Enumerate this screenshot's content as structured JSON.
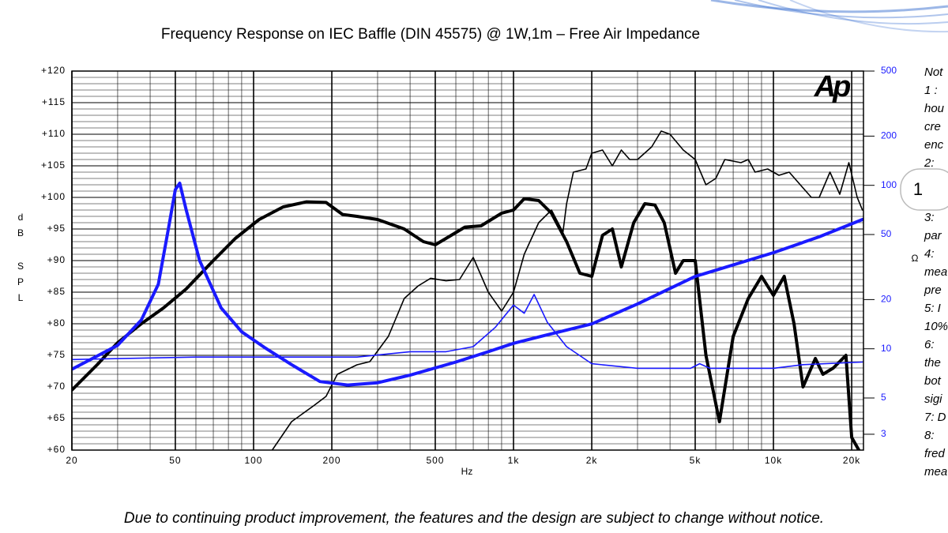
{
  "chart_data": {
    "type": "line",
    "title": "Frequency Response on IEC Baffle (DIN 45575)  @ 1W,1m – Free Air Impedance",
    "footer": "Due to continuing product improvement, the features and the design are subject to change without notice.",
    "logo": "Ap",
    "popup": "1",
    "ylabel_letters": [
      "d",
      "B",
      "S",
      "P",
      "L"
    ],
    "xlabel": "Hz",
    "y2label": "Ω",
    "notes": [
      "Not",
      "1 :",
      "hou",
      "cre",
      "enc",
      "2:",
      "3:",
      "par",
      "4:",
      "mea",
      "pre",
      "5: I",
      "10%",
      "6:",
      "the",
      "bot",
      "sigi",
      "7: D",
      "8:",
      "fred",
      "mea"
    ],
    "xlog": true,
    "y2log": true,
    "grid": true,
    "minor_grid": true,
    "xlim": [
      20,
      22200
    ],
    "xticks": [
      20,
      50,
      100,
      200,
      500,
      {
        "value": 1000,
        "label": "1k"
      },
      {
        "value": 2000,
        "label": "2k"
      },
      {
        "value": 5000,
        "label": "5k"
      },
      {
        "value": 10000,
        "label": "10k"
      },
      {
        "value": 20000,
        "label": "20k"
      }
    ],
    "ylim": [
      60,
      120
    ],
    "yticks": [
      {
        "value": 60,
        "label": "+60"
      },
      {
        "value": 65,
        "label": "+65"
      },
      {
        "value": 70,
        "label": "+70"
      },
      {
        "value": 75,
        "label": "+75"
      },
      {
        "value": 80,
        "label": "+80"
      },
      {
        "value": 85,
        "label": "+85"
      },
      {
        "value": 90,
        "label": "+90"
      },
      {
        "value": 95,
        "label": "+95"
      },
      {
        "value": 100,
        "label": "+100"
      },
      {
        "value": 105,
        "label": "+105"
      },
      {
        "value": 110,
        "label": "+110"
      },
      {
        "value": 115,
        "label": "+115"
      },
      {
        "value": 120,
        "label": "+120"
      }
    ],
    "y2lim": [
      2.4,
      500
    ],
    "y2ticks": [
      3,
      5,
      10,
      20,
      50,
      100,
      200,
      500
    ],
    "y2color": "#1a1aff",
    "series": [
      {
        "color": "#000000",
        "line_width": 4,
        "x": [
          20,
          25,
          30,
          37,
          45,
          55,
          70,
          85,
          105,
          130,
          160,
          190,
          220,
          250,
          300,
          380,
          450,
          500,
          560,
          650,
          750,
          900,
          1000,
          1100,
          1250,
          1400,
          1600,
          1800,
          2000,
          2200,
          2400,
          2600,
          2900,
          3200,
          3500,
          3800,
          4200,
          4500,
          5000,
          5500,
          6200,
          7000,
          8000,
          9000,
          10000,
          11000,
          12000,
          13000,
          14500,
          15500,
          17000,
          19000,
          20000,
          22000
        ],
        "values": [
          69.5,
          73.5,
          77,
          80,
          82.5,
          85.5,
          90,
          93.5,
          96.5,
          98.5,
          99.3,
          99.2,
          97.3,
          97,
          96.5,
          95,
          93,
          92.5,
          93.7,
          95.3,
          95.5,
          97.5,
          98,
          99.8,
          99.5,
          97.5,
          93,
          88,
          87.5,
          94,
          95,
          89,
          96,
          99,
          98.8,
          96,
          88,
          90,
          90,
          75,
          64.5,
          78,
          84,
          87.5,
          84.5,
          87.5,
          80,
          70,
          74.5,
          72,
          73,
          75,
          62,
          59
        ]
      },
      {
        "color": "#000000",
        "line_width": 1.6,
        "x": [
          118,
          140,
          170,
          190,
          210,
          250,
          280,
          330,
          380,
          430,
          480,
          550,
          620,
          700,
          800,
          900,
          1000,
          1100,
          1250,
          1400,
          1550,
          1600,
          1700,
          1900,
          2000,
          2200,
          2400,
          2600,
          2800,
          3000,
          3400,
          3700,
          4000,
          4500,
          5000,
          5500,
          6000,
          6500,
          7500,
          8000,
          8500,
          9500,
          10500,
          11500,
          13000,
          14000,
          15000,
          16500,
          18000,
          19500,
          21000,
          22000
        ],
        "values": [
          60,
          64.5,
          67,
          68.5,
          72,
          73.5,
          74,
          78,
          84,
          86,
          87.2,
          86.8,
          87,
          90.5,
          85,
          82,
          85,
          91,
          96,
          98,
          94.5,
          99,
          104,
          104.5,
          107,
          107.5,
          105,
          107.5,
          106,
          106,
          108,
          110.5,
          110,
          107.5,
          106,
          102,
          103,
          106,
          105.5,
          106,
          104,
          104.5,
          103.5,
          104,
          101.5,
          100,
          100,
          104,
          100.5,
          105.5,
          100,
          98
        ]
      },
      {
        "color": "#1a1aff",
        "line_width": 4,
        "axis": "y2",
        "x": [
          20,
          30,
          37,
          43,
          47,
          50,
          52,
          55,
          62,
          75,
          90,
          110,
          140,
          180,
          230,
          300,
          400,
          600,
          800,
          1000,
          1300,
          2000,
          3000,
          5000,
          10000,
          15000,
          22000
        ],
        "values": [
          7.5,
          10.5,
          15,
          24.8,
          54,
          94,
          103,
          71,
          34.6,
          17.8,
          12.7,
          10.2,
          8,
          6.3,
          6,
          6.2,
          6.9,
          8.3,
          9.6,
          10.8,
          12,
          14.2,
          18.8,
          27.7,
          38.7,
          48.4,
          61.8
        ]
      },
      {
        "color": "#1a1aff",
        "line_width": 1.6,
        "axis": "y2",
        "x": [
          20,
          60,
          250,
          400,
          550,
          700,
          850,
          1000,
          1100,
          1200,
          1350,
          1600,
          2000,
          3000,
          4800,
          5200,
          5700,
          10000,
          13000,
          22000
        ],
        "values": [
          8.6,
          8.9,
          8.9,
          9.6,
          9.6,
          10.3,
          13.5,
          18.5,
          16.5,
          21.5,
          14.5,
          10.3,
          8.1,
          7.6,
          7.6,
          8.1,
          7.6,
          7.6,
          8,
          8.3
        ]
      }
    ]
  }
}
